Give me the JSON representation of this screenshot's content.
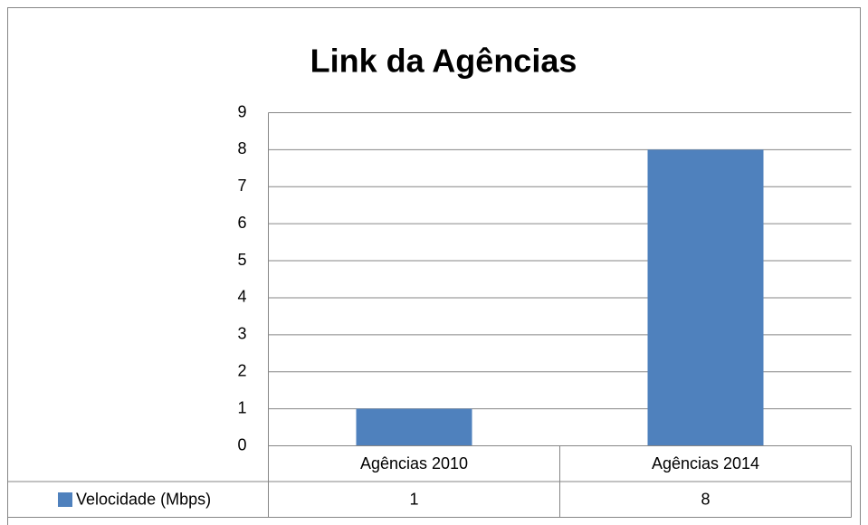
{
  "chart_data": {
    "type": "bar",
    "title": "Link da Agências",
    "categories": [
      "Agências 2010",
      "Agências 2014"
    ],
    "series": [
      {
        "name": "Velocidade (Mbps)",
        "color": "#4f81bd",
        "values": [
          1,
          8
        ]
      }
    ],
    "ylim": [
      0,
      9
    ],
    "yticks": [
      0,
      1,
      2,
      3,
      4,
      5,
      6,
      7,
      8,
      9
    ],
    "grid": true,
    "data_table": true
  }
}
